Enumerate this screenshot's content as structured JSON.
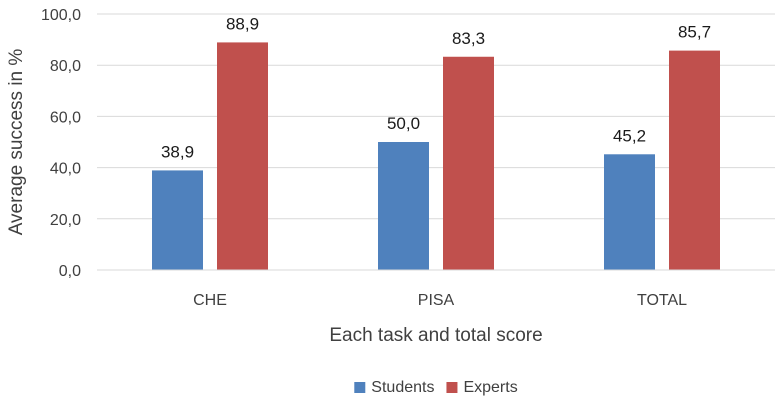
{
  "chart_data": {
    "type": "bar",
    "title": "",
    "xlabel": "Each task and total score",
    "ylabel": "Average success in %",
    "categories": [
      "CHE",
      "PISA",
      "TOTAL"
    ],
    "series": [
      {
        "name": "Students",
        "color": "#4f81bd",
        "values": [
          38.9,
          50.0,
          45.2
        ],
        "labels": [
          "38,9",
          "50,0",
          "45,2"
        ]
      },
      {
        "name": "Experts",
        "color": "#c0504d",
        "values": [
          88.9,
          83.3,
          85.7
        ],
        "labels": [
          "88,9",
          "83,3",
          "85,7"
        ]
      }
    ],
    "ylim": [
      0,
      100
    ],
    "yticks": [
      0,
      20,
      40,
      60,
      80,
      100
    ],
    "ytick_labels": [
      "0,0",
      "20,0",
      "40,0",
      "60,0",
      "80,0",
      "100,0"
    ],
    "grid": true,
    "gridline_color": "#d9d9d9",
    "legend_position": "bottom"
  }
}
